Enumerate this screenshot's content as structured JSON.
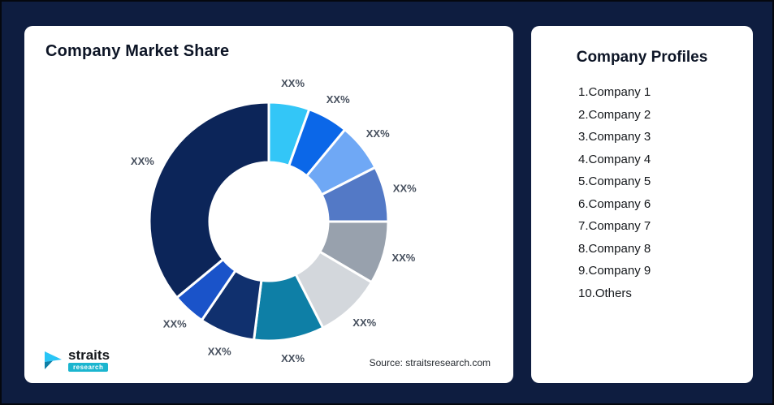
{
  "page": {
    "background_color": "#0E1D40"
  },
  "left_card": {
    "title": "Company Market Share",
    "source": "Source: straitsresearch.com",
    "logo": {
      "name": "straits",
      "sub": "research"
    }
  },
  "right_card": {
    "title": "Company Profiles",
    "items": [
      "1.Company 1",
      "2.Company 2",
      "3.Company 3",
      "4.Company 4",
      "5.Company 5",
      "6.Company 6",
      "7.Company 7",
      "8.Company 8",
      "9.Company 9",
      "10.Others"
    ]
  },
  "chart_data": {
    "type": "pie",
    "subtype": "donut",
    "title": "Company Market Share",
    "value_labels_masked": true,
    "legend": "none",
    "source": "Source: straitsresearch.com",
    "slices": [
      {
        "label": "XX%",
        "approx_percent": 5.5,
        "color": "#33C6F7"
      },
      {
        "label": "XX%",
        "approx_percent": 5.5,
        "color": "#0B67E8"
      },
      {
        "label": "XX%",
        "approx_percent": 6.5,
        "color": "#6FA8F5"
      },
      {
        "label": "XX%",
        "approx_percent": 7.5,
        "color": "#5379C6"
      },
      {
        "label": "XX%",
        "approx_percent": 8.5,
        "color": "#98A1AD"
      },
      {
        "label": "XX%",
        "approx_percent": 9.0,
        "color": "#D3D7DC"
      },
      {
        "label": "XX%",
        "approx_percent": 9.5,
        "color": "#0E7FA6"
      },
      {
        "label": "XX%",
        "approx_percent": 7.5,
        "color": "#10306E"
      },
      {
        "label": "XX%",
        "approx_percent": 4.5,
        "color": "#1A53C9"
      },
      {
        "label": "XX%",
        "approx_percent": 36.0,
        "color": "#0C2559"
      }
    ]
  }
}
